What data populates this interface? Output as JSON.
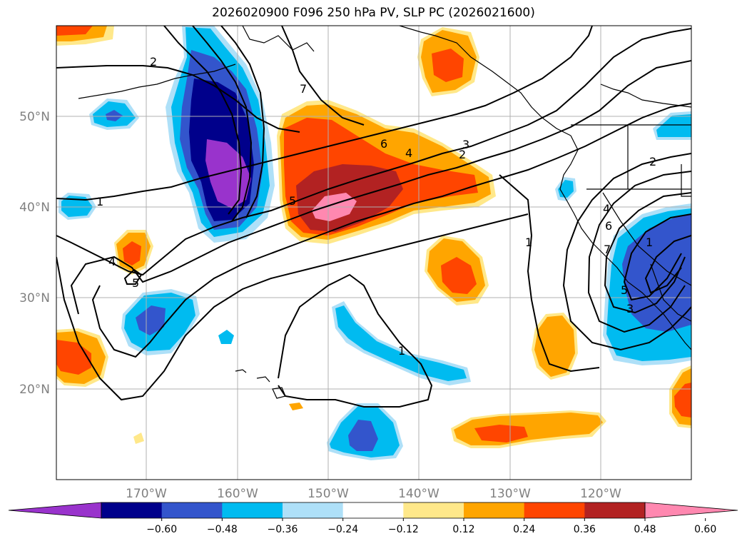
{
  "title": "2026020900 F096 250 hPa PV, SLP PC (2026021600)",
  "map": {
    "lon_labels": [
      "170°W",
      "160°W",
      "150°W",
      "140°W",
      "130°W",
      "120°W"
    ],
    "lat_labels": [
      "50°N",
      "40°N",
      "30°N",
      "20°N"
    ],
    "contour_labels": [
      "2",
      "7",
      "1",
      "6",
      "3",
      "4",
      "2",
      "5",
      "4",
      "5",
      "1",
      "1",
      "2",
      "4",
      "6",
      "7",
      "5",
      "3",
      "1"
    ]
  },
  "colorbar": {
    "colors": [
      "#9933cc",
      "#00008b",
      "#3355cc",
      "#00bbf0",
      "#aee0f8",
      "#ffffff",
      "#ffe88a",
      "#ffa500",
      "#ff4500",
      "#b22222",
      "#ff88b0"
    ],
    "ticks": [
      "−0.60",
      "−0.48",
      "−0.36",
      "−0.24",
      "−0.12",
      "0.12",
      "0.24",
      "0.36",
      "0.48",
      "0.60"
    ]
  }
}
